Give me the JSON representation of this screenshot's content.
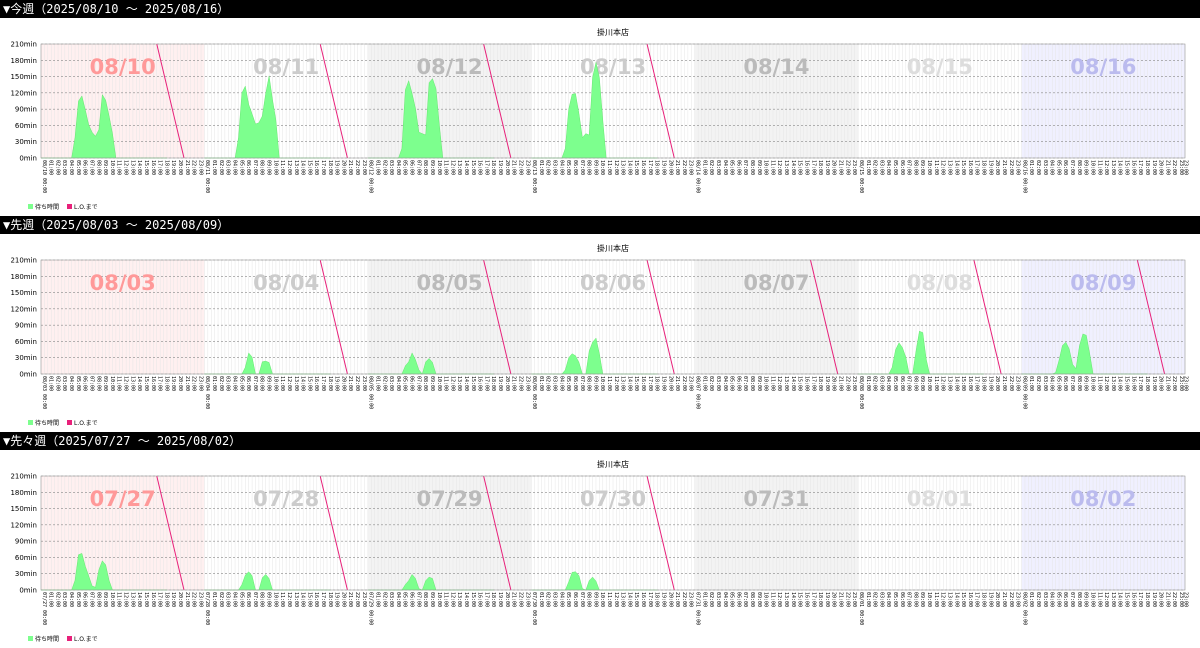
{
  "chart_data": [
    {
      "type": "area",
      "header": "▼今週（2025/08/10 〜 2025/08/16）",
      "title": "掛川本店",
      "ylim": [
        0,
        210
      ],
      "y_ticks": [
        "0min",
        "30min",
        "60min",
        "90min",
        "120min",
        "150min",
        "180min",
        "210min"
      ],
      "days": [
        "08/10",
        "08/11",
        "08/12",
        "08/13",
        "08/14",
        "08/15",
        "08/16"
      ],
      "day_colors": [
        "#ff9999",
        "#cccccc",
        "#bbbbbb",
        "#cccccc",
        "#bbbbbb",
        "#dddddd",
        "#bbbbee"
      ],
      "day_backgrounds": [
        "#fff0f0",
        "#ffffff",
        "#f3f3f3",
        "#ffffff",
        "#f3f3f3",
        "#ffffff",
        "#f0f0ff"
      ],
      "series": [
        {
          "name": "待ち時間",
          "color": "#7dff8e",
          "values": [
            [
              0,
              0,
              0,
              0,
              0,
              0,
              0,
              0,
              0,
              0,
              40,
              105,
              112,
              90,
              60,
              50,
              40,
              50,
              118,
              105,
              80,
              45,
              0,
              0,
              0,
              0,
              0,
              0,
              0,
              0,
              0,
              0,
              0,
              0,
              0,
              0,
              0,
              0
            ],
            [
              0,
              0,
              0,
              0,
              0,
              0,
              0,
              0,
              0,
              0,
              40,
              120,
              130,
              100,
              80,
              65,
              65,
              75,
              120,
              150,
              110,
              70,
              0,
              0,
              0,
              0,
              0,
              0,
              0,
              0,
              0,
              0,
              0,
              0,
              0,
              0,
              0,
              0
            ],
            [
              0,
              0,
              0,
              0,
              0,
              0,
              0,
              0,
              0,
              0,
              20,
              125,
              140,
              120,
              90,
              50,
              45,
              40,
              140,
              145,
              130,
              60,
              0,
              0,
              0,
              0,
              0,
              0,
              0,
              0,
              0,
              0,
              0,
              0,
              0,
              0,
              0,
              0
            ],
            [
              0,
              0,
              0,
              0,
              0,
              0,
              0,
              0,
              0,
              0,
              20,
              90,
              115,
              120,
              80,
              40,
              45,
              40,
              150,
              175,
              150,
              70,
              0,
              0,
              0,
              0,
              0,
              0,
              0,
              0,
              0,
              0,
              0,
              0,
              0,
              0,
              0,
              0
            ],
            [],
            [],
            []
          ]
        },
        {
          "name": "L.O.まで",
          "color": "#e8207a"
        }
      ]
    },
    {
      "type": "area",
      "header": "▼先週（2025/08/03 〜 2025/08/09）",
      "title": "掛川本店",
      "ylim": [
        0,
        210
      ],
      "y_ticks": [
        "0min",
        "30min",
        "60min",
        "90min",
        "120min",
        "150min",
        "180min",
        "210min"
      ],
      "days": [
        "08/03",
        "08/04",
        "08/05",
        "08/06",
        "08/07",
        "08/08",
        "08/09"
      ],
      "day_colors": [
        "#ff9999",
        "#cccccc",
        "#bbbbbb",
        "#cccccc",
        "#bbbbbb",
        "#dddddd",
        "#bbbbee"
      ],
      "day_backgrounds": [
        "#fff0f0",
        "#ffffff",
        "#f3f3f3",
        "#ffffff",
        "#f3f3f3",
        "#ffffff",
        "#f0f0ff"
      ],
      "series": [
        {
          "name": "待ち時間",
          "color": "#7dff8e",
          "values": [
            [],
            [
              0,
              0,
              0,
              0,
              0,
              0,
              0,
              0,
              0,
              0,
              0,
              0,
              10,
              40,
              30,
              0,
              0,
              20,
              25,
              20,
              0,
              0,
              0,
              0,
              0,
              0,
              0,
              0,
              0,
              0,
              0,
              0,
              0,
              0,
              0,
              0,
              0,
              0
            ],
            [
              0,
              0,
              0,
              0,
              0,
              0,
              0,
              0,
              0,
              0,
              0,
              15,
              20,
              40,
              25,
              10,
              0,
              20,
              30,
              20,
              0,
              0,
              0,
              0,
              0,
              0,
              0,
              0,
              0,
              0,
              0,
              0,
              0,
              0,
              0,
              0,
              0,
              0
            ],
            [
              0,
              0,
              0,
              0,
              0,
              0,
              0,
              0,
              0,
              0,
              10,
              30,
              35,
              35,
              20,
              0,
              0,
              40,
              60,
              65,
              40,
              0,
              0,
              0,
              0,
              0,
              0,
              0,
              0,
              0,
              0,
              0,
              0,
              0,
              0,
              0,
              0,
              0
            ],
            [],
            [
              0,
              0,
              0,
              0,
              0,
              0,
              0,
              0,
              0,
              0,
              15,
              45,
              55,
              50,
              30,
              0,
              0,
              40,
              80,
              75,
              30,
              0,
              0,
              0,
              0,
              0,
              0,
              0,
              0,
              0,
              0,
              0,
              0,
              0,
              0,
              0,
              0,
              0
            ],
            [
              0,
              0,
              0,
              0,
              0,
              0,
              0,
              0,
              0,
              0,
              5,
              25,
              50,
              60,
              45,
              20,
              10,
              50,
              75,
              70,
              40,
              0,
              0,
              0,
              0,
              0,
              0,
              0,
              0,
              0,
              0,
              0,
              0,
              0,
              0,
              0,
              0,
              0
            ]
          ]
        },
        {
          "name": "L.O.まで",
          "color": "#e8207a"
        }
      ]
    },
    {
      "type": "area",
      "header": "▼先々週（2025/07/27 〜 2025/08/02）",
      "title": "掛川本店",
      "ylim": [
        0,
        210
      ],
      "y_ticks": [
        "0min",
        "30min",
        "60min",
        "90min",
        "120min",
        "150min",
        "180min",
        "210min"
      ],
      "days": [
        "07/27",
        "07/28",
        "07/29",
        "07/30",
        "07/31",
        "08/01",
        "08/02"
      ],
      "day_colors": [
        "#ff9999",
        "#cccccc",
        "#bbbbbb",
        "#cccccc",
        "#bbbbbb",
        "#dddddd",
        "#bbbbee"
      ],
      "day_backgrounds": [
        "#fff0f0",
        "#ffffff",
        "#f3f3f3",
        "#ffffff",
        "#f3f3f3",
        "#ffffff",
        "#f0f0ff"
      ],
      "series": [
        {
          "name": "待ち時間",
          "color": "#7dff8e",
          "values": [
            [
              0,
              0,
              0,
              0,
              0,
              0,
              0,
              0,
              0,
              0,
              20,
              65,
              65,
              45,
              25,
              10,
              5,
              35,
              55,
              45,
              20,
              0,
              0,
              0,
              0,
              0,
              0,
              0,
              0,
              0,
              0,
              0,
              0,
              0,
              0,
              0,
              0,
              0
            ],
            [
              0,
              0,
              0,
              0,
              0,
              0,
              0,
              0,
              0,
              0,
              0,
              10,
              25,
              35,
              25,
              0,
              0,
              20,
              30,
              20,
              0,
              0,
              0,
              0,
              0,
              0,
              0,
              0,
              0,
              0,
              0,
              0,
              0,
              0,
              0,
              0,
              0,
              0
            ],
            [
              0,
              0,
              0,
              0,
              0,
              0,
              0,
              0,
              0,
              0,
              0,
              10,
              15,
              30,
              20,
              5,
              0,
              15,
              25,
              20,
              0,
              0,
              0,
              0,
              0,
              0,
              0,
              0,
              0,
              0,
              0,
              0,
              0,
              0,
              0,
              0,
              0,
              0
            ],
            [
              0,
              0,
              0,
              0,
              0,
              0,
              0,
              0,
              0,
              0,
              0,
              15,
              30,
              35,
              25,
              5,
              0,
              15,
              25,
              15,
              0,
              0,
              0,
              0,
              0,
              0,
              0,
              0,
              0,
              0,
              0,
              0,
              0,
              0,
              0,
              0,
              0,
              0
            ],
            [],
            [],
            []
          ]
        },
        {
          "name": "L.O.まで",
          "color": "#e8207a"
        }
      ]
    }
  ],
  "lo_lines": [
    [
      true,
      true,
      true,
      true,
      false,
      false,
      false
    ],
    [
      false,
      true,
      true,
      true,
      true,
      true,
      true
    ],
    [
      true,
      true,
      true,
      true,
      false,
      false,
      false
    ]
  ]
}
